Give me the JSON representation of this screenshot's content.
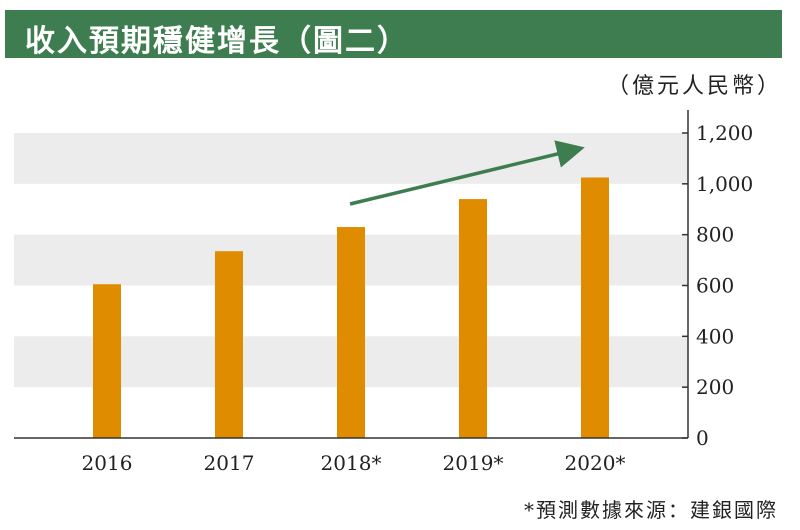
{
  "title": "收入預期穩健增長（圖二）",
  "unit": "（億元人民幣）",
  "footnote": "*預測數據來源：建銀國際",
  "colors": {
    "title_bg": "#3d7d4f",
    "bar": "#e08c00",
    "band": "#ececec",
    "arrow": "#3d7d4f"
  },
  "chart_data": {
    "type": "bar",
    "categories": [
      "2016",
      "2017",
      "2018*",
      "2019*",
      "2020*"
    ],
    "values": [
      605,
      735,
      830,
      940,
      1025
    ],
    "ylim": [
      0,
      1200
    ],
    "yticks": [
      "0",
      "200",
      "400",
      "600",
      "800",
      "1,000",
      "1,200"
    ],
    "y_axis_position": "right",
    "grid": "alternating bands",
    "annotation": "upward trend arrow over 2018*–2020*"
  }
}
